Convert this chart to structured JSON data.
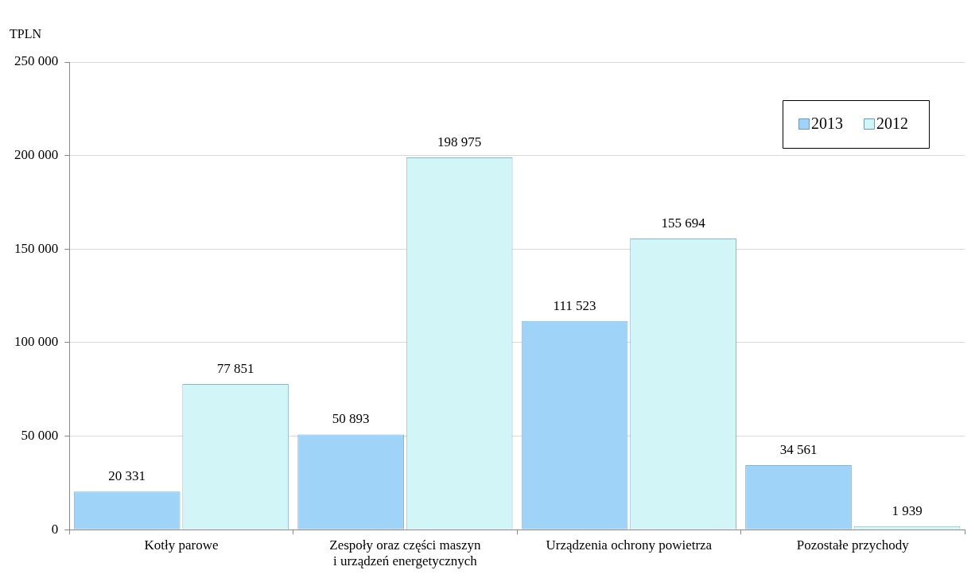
{
  "chart_data": {
    "type": "bar",
    "ylabel": "TPLN",
    "categories": [
      "Kotły parowe",
      "Zespoły oraz części maszyn\ni urządzeń energetycznych",
      "Urządzenia ochrony powietrza",
      "Pozostałe przychody"
    ],
    "series": [
      {
        "name": "2013",
        "color": "#9fd3f7",
        "values": [
          20331,
          50893,
          111523,
          34561
        ],
        "value_labels": [
          "20 331",
          "50 893",
          "111 523",
          "34 561"
        ]
      },
      {
        "name": "2012",
        "color": "#d2f6f8",
        "values": [
          77851,
          198975,
          155694,
          1939
        ],
        "value_labels": [
          "77 851",
          "198 975",
          "155 694",
          "1 939"
        ]
      }
    ],
    "ylim": [
      0,
      250000
    ],
    "yticks": [
      {
        "value": 0,
        "label": "0"
      },
      {
        "value": 50000,
        "label": "50 000"
      },
      {
        "value": 100000,
        "label": "100 000"
      },
      {
        "value": 150000,
        "label": "150 000"
      },
      {
        "value": 200000,
        "label": "200 000"
      },
      {
        "value": 250000,
        "label": "250 000"
      }
    ],
    "grid": "y",
    "legend": "top right"
  }
}
